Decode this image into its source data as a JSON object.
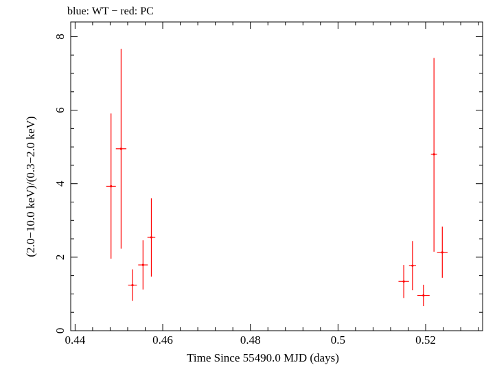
{
  "chart_data": {
    "type": "scatter",
    "title": "blue: WT − red: PC",
    "xlabel": "Time Since 55490.0 MJD (days)",
    "ylabel": "(2.0−10.0 keV)/(0.3−2.0 keV)",
    "xlim": [
      0.439,
      0.533
    ],
    "ylim": [
      0,
      8.4
    ],
    "x_ticks": [
      0.44,
      0.46,
      0.48,
      0.5,
      0.52
    ],
    "x_tick_labels": [
      "0.44",
      "0.46",
      "0.48",
      "0.5",
      "0.52"
    ],
    "y_ticks": [
      0,
      2,
      4,
      6,
      8
    ],
    "y_tick_labels": [
      "0",
      "2",
      "4",
      "6",
      "8"
    ],
    "series": [
      {
        "name": "PC",
        "color": "#ff0000",
        "points": [
          {
            "x": 0.4482,
            "xerr": 0.0011,
            "y": 3.93,
            "ylo": 1.96,
            "yhi": 5.91
          },
          {
            "x": 0.4505,
            "xerr": 0.0012,
            "y": 4.95,
            "ylo": 2.23,
            "yhi": 7.67
          },
          {
            "x": 0.4531,
            "xerr": 0.001,
            "y": 1.24,
            "ylo": 0.81,
            "yhi": 1.67
          },
          {
            "x": 0.4555,
            "xerr": 0.0011,
            "y": 1.79,
            "ylo": 1.12,
            "yhi": 2.46
          },
          {
            "x": 0.4574,
            "xerr": 0.0009,
            "y": 2.54,
            "ylo": 1.47,
            "yhi": 3.6
          },
          {
            "x": 0.515,
            "xerr": 0.0012,
            "y": 1.34,
            "ylo": 0.89,
            "yhi": 1.79
          },
          {
            "x": 0.517,
            "xerr": 0.0008,
            "y": 1.77,
            "ylo": 1.1,
            "yhi": 2.44
          },
          {
            "x": 0.5195,
            "xerr": 0.0014,
            "y": 0.96,
            "ylo": 0.67,
            "yhi": 1.25
          },
          {
            "x": 0.5219,
            "xerr": 0.0007,
            "y": 4.8,
            "ylo": 2.15,
            "yhi": 7.42
          },
          {
            "x": 0.5238,
            "xerr": 0.0012,
            "y": 2.13,
            "ylo": 1.44,
            "yhi": 2.83
          }
        ]
      }
    ]
  }
}
